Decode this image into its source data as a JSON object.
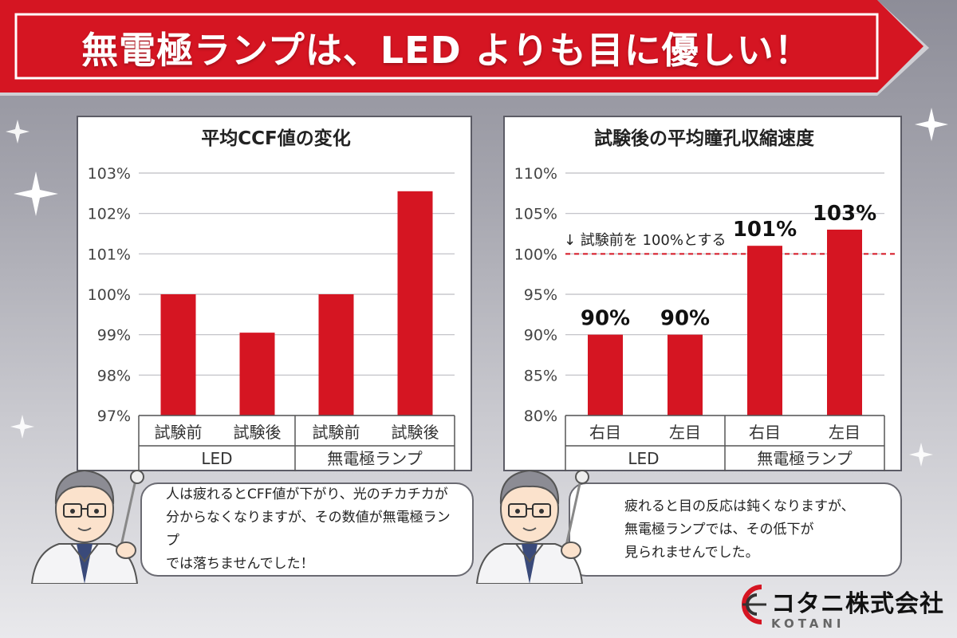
{
  "banner": {
    "title": "無電極ランプは、LED よりも目に優しい！"
  },
  "charts": {
    "left": {
      "title": "平均CCF値の変化",
      "y_ticks": [
        "103%",
        "102%",
        "101%",
        "100%",
        "99%",
        "98%",
        "97%"
      ],
      "groups": [
        "LED",
        "無電極ランプ"
      ]
    },
    "right": {
      "title": "試験後の平均瞳孔収縮速度",
      "y_ticks": [
        "110%",
        "105%",
        "100%",
        "95%",
        "90%",
        "85%",
        "80%"
      ],
      "groups": [
        "LED",
        "無電極ランプ"
      ],
      "reference_label": "↓ 試験前を 100%とする",
      "data_labels": [
        "90%",
        "90%",
        "101%",
        "103%"
      ]
    }
  },
  "chart_data": [
    {
      "type": "bar",
      "title": "平均CCF値の変化",
      "categories": [
        "試験前",
        "試験後",
        "試験前",
        "試験後"
      ],
      "groups": [
        "LED",
        "LED",
        "無電極ランプ",
        "無電極ランプ"
      ],
      "values": [
        100.0,
        99.05,
        100.0,
        102.55
      ],
      "unit": "%",
      "ylim": [
        97,
        103
      ],
      "grid": true,
      "bar_color": "#d51522"
    },
    {
      "type": "bar",
      "title": "試験後の平均瞳孔収縮速度",
      "categories": [
        "右目",
        "左目",
        "右目",
        "左目"
      ],
      "groups": [
        "LED",
        "LED",
        "無電極ランプ",
        "無電極ランプ"
      ],
      "values": [
        90,
        90,
        101,
        103
      ],
      "unit": "%",
      "ylim": [
        80,
        110
      ],
      "grid": true,
      "reference_line": 100,
      "bar_color": "#d51522"
    }
  ],
  "bubbles": {
    "left": [
      "人は疲れるとCFF値が下がり、光のチカチカが",
      "分からなくなりますが、その数値が無電極ランプ",
      "では落ちませんでした！"
    ],
    "right": [
      "疲れると目の反応は鈍くなりますが、",
      "無電極ランプでは、その低下が",
      "見られませんでした。"
    ]
  },
  "logo": {
    "text": "コタニ株式会社",
    "subtext": "KOTANI"
  },
  "colors": {
    "banner_red": "#d51522",
    "bar_red": "#d51522",
    "reference_dash": "#d51522"
  }
}
